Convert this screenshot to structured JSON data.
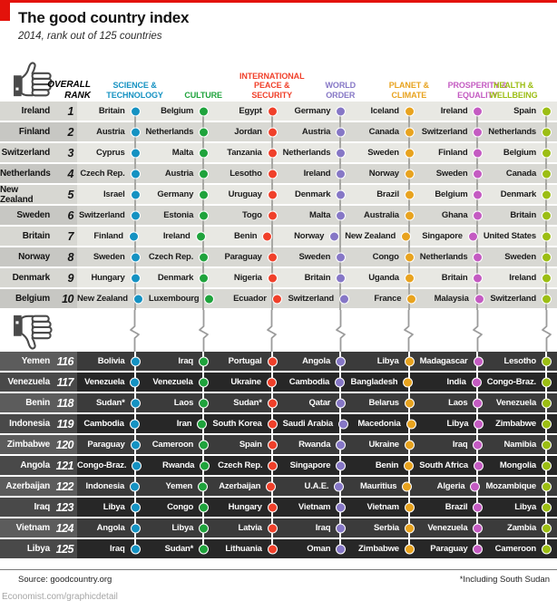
{
  "chart_data": {
    "type": "table",
    "title": "The good country index",
    "subtitle": "2014, rank out of 125 countries",
    "overall_rank_header": "OVERALL\nRANK",
    "accent_red": "#e3120b",
    "icons": [
      "thumbs-up-icon",
      "thumbs-down-icon"
    ],
    "columns": [
      {
        "label": "SCIENCE &\nTECHNOLOGY",
        "color": "#1592c2"
      },
      {
        "label": "CULTURE",
        "color": "#1fa33c"
      },
      {
        "label": "INTERNATIONAL\nPEACE &\nSECURITY",
        "color": "#f0402a"
      },
      {
        "label": "WORLD\nORDER",
        "color": "#8677c6"
      },
      {
        "label": "PLANET &\nCLIMATE",
        "color": "#e8a31f"
      },
      {
        "label": "PROSPERITY &\nEQUALITY",
        "color": "#c45bc2"
      },
      {
        "label": "HEALTH &\nWELLBEING",
        "color": "#9cbe14"
      }
    ],
    "rows_top": [
      {
        "rank": "1",
        "overall": "Ireland",
        "cells": [
          "Britain",
          "Belgium",
          "Egypt",
          "Germany",
          "Iceland",
          "Ireland",
          "Spain"
        ]
      },
      {
        "rank": "2",
        "overall": "Finland",
        "cells": [
          "Austria",
          "Netherlands",
          "Jordan",
          "Austria",
          "Canada",
          "Switzerland",
          "Netherlands"
        ]
      },
      {
        "rank": "3",
        "overall": "Switzerland",
        "cells": [
          "Cyprus",
          "Malta",
          "Tanzania",
          "Netherlands",
          "Sweden",
          "Finland",
          "Belgium"
        ]
      },
      {
        "rank": "4",
        "overall": "Netherlands",
        "cells": [
          "Czech Rep.",
          "Austria",
          "Lesotho",
          "Ireland",
          "Norway",
          "Sweden",
          "Canada"
        ]
      },
      {
        "rank": "5",
        "overall": "New Zealand",
        "cells": [
          "Israel",
          "Germany",
          "Uruguay",
          "Denmark",
          "Brazil",
          "Belgium",
          "Denmark"
        ]
      },
      {
        "rank": "6",
        "overall": "Sweden",
        "cells": [
          "Switzerland",
          "Estonia",
          "Togo",
          "Malta",
          "Australia",
          "Ghana",
          "Britain"
        ]
      },
      {
        "rank": "7",
        "overall": "Britain",
        "cells": [
          "Finland",
          "Ireland",
          "Benin",
          "Norway",
          "New Zealand",
          "Singapore",
          "United States"
        ]
      },
      {
        "rank": "8",
        "overall": "Norway",
        "cells": [
          "Sweden",
          "Czech Rep.",
          "Paraguay",
          "Sweden",
          "Congo",
          "Netherlands",
          "Sweden"
        ]
      },
      {
        "rank": "9",
        "overall": "Denmark",
        "cells": [
          "Hungary",
          "Denmark",
          "Nigeria",
          "Britain",
          "Uganda",
          "Britain",
          "Ireland"
        ]
      },
      {
        "rank": "10",
        "overall": "Belgium",
        "cells": [
          "New Zealand",
          "Luxembourg",
          "Ecuador",
          "Switzerland",
          "France",
          "Malaysia",
          "Switzerland"
        ]
      }
    ],
    "rows_bottom": [
      {
        "rank": "116",
        "overall": "Yemen",
        "cells": [
          "Bolivia",
          "Iraq",
          "Portugal",
          "Angola",
          "Libya",
          "Madagascar",
          "Lesotho"
        ]
      },
      {
        "rank": "117",
        "overall": "Venezuela",
        "cells": [
          "Venezuela",
          "Venezuela",
          "Ukraine",
          "Cambodia",
          "Bangladesh",
          "India",
          "Congo-Braz."
        ]
      },
      {
        "rank": "118",
        "overall": "Benin",
        "cells": [
          "Sudan*",
          "Laos",
          "Sudan*",
          "Qatar",
          "Belarus",
          "Laos",
          "Venezuela"
        ]
      },
      {
        "rank": "119",
        "overall": "Indonesia",
        "cells": [
          "Cambodia",
          "Iran",
          "South Korea",
          "Saudi Arabia",
          "Macedonia",
          "Libya",
          "Zimbabwe"
        ]
      },
      {
        "rank": "120",
        "overall": "Zimbabwe",
        "cells": [
          "Paraguay",
          "Cameroon",
          "Spain",
          "Rwanda",
          "Ukraine",
          "Iraq",
          "Namibia"
        ]
      },
      {
        "rank": "121",
        "overall": "Angola",
        "cells": [
          "Congo-Braz.",
          "Rwanda",
          "Czech Rep.",
          "Singapore",
          "Benin",
          "South Africa",
          "Mongolia"
        ]
      },
      {
        "rank": "122",
        "overall": "Azerbaijan",
        "cells": [
          "Indonesia",
          "Yemen",
          "Azerbaijan",
          "U.A.E.",
          "Mauritius",
          "Algeria",
          "Mozambique"
        ]
      },
      {
        "rank": "123",
        "overall": "Iraq",
        "cells": [
          "Libya",
          "Congo",
          "Hungary",
          "Vietnam",
          "Vietnam",
          "Brazil",
          "Libya"
        ]
      },
      {
        "rank": "124",
        "overall": "Vietnam",
        "cells": [
          "Angola",
          "Libya",
          "Latvia",
          "Iraq",
          "Serbia",
          "Venezuela",
          "Zambia"
        ]
      },
      {
        "rank": "125",
        "overall": "Libya",
        "cells": [
          "Iraq",
          "Sudan*",
          "Lithuania",
          "Oman",
          "Zimbabwe",
          "Paraguay",
          "Cameroon"
        ]
      }
    ],
    "footer": {
      "source": "Source: goodcountry.org",
      "footnote": "*Including South Sudan",
      "site": "Economist.com/graphicdetail"
    }
  }
}
